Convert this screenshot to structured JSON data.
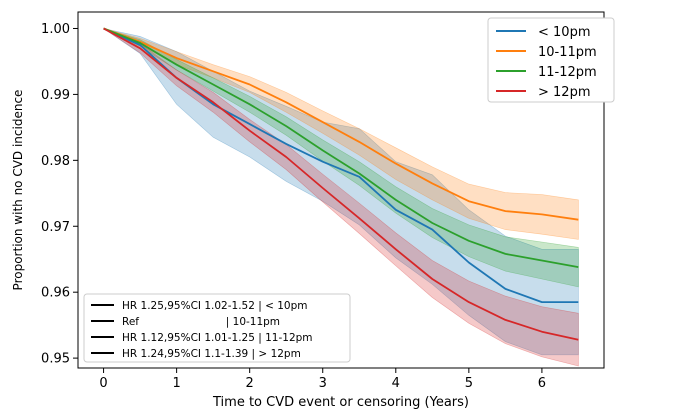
{
  "chart_data": {
    "type": "line",
    "title": "",
    "xlabel": "Time to CVD event or censoring (Years)",
    "ylabel": "Proportion with no CVD incidence",
    "xlim": [
      -0.35,
      6.85
    ],
    "ylim": [
      0.9485,
      1.0025
    ],
    "xticks": [
      0,
      1,
      2,
      3,
      4,
      5,
      6
    ],
    "yticks": [
      0.95,
      0.96,
      0.97,
      0.98,
      0.99,
      1.0
    ],
    "ytick_labels": [
      "0.95",
      "0.96",
      "0.97",
      "0.98",
      "0.99",
      "1.00"
    ],
    "grid": false,
    "legend_position": "top-right",
    "series": [
      {
        "name": "< 10pm",
        "color": "#1f77b4",
        "x": [
          0,
          0.5,
          1.0,
          1.5,
          2.0,
          2.5,
          3.0,
          3.5,
          4.0,
          4.5,
          5.0,
          5.5,
          6.0,
          6.5
        ],
        "y": [
          1.0,
          0.9975,
          0.9925,
          0.9885,
          0.9855,
          0.9825,
          0.9798,
          0.9775,
          0.9725,
          0.9695,
          0.9645,
          0.9605,
          0.9585,
          0.9585
        ],
        "lower": [
          1.0,
          0.9962,
          0.9885,
          0.9835,
          0.9805,
          0.9768,
          0.9738,
          0.9702,
          0.9652,
          0.9612,
          0.9565,
          0.9525,
          0.9505,
          0.9505
        ],
        "upper": [
          1.0,
          0.9988,
          0.9965,
          0.9935,
          0.9905,
          0.9882,
          0.9858,
          0.9848,
          0.9798,
          0.9778,
          0.9725,
          0.9685,
          0.9665,
          0.9665
        ]
      },
      {
        "name": "10-11pm",
        "color": "#ff7f0e",
        "x": [
          0,
          0.5,
          1.0,
          1.5,
          2.0,
          2.5,
          3.0,
          3.5,
          4.0,
          4.5,
          5.0,
          5.5,
          6.0,
          6.5
        ],
        "y": [
          1.0,
          0.998,
          0.9955,
          0.9935,
          0.9915,
          0.9888,
          0.9858,
          0.9828,
          0.9795,
          0.9765,
          0.9738,
          0.9723,
          0.9718,
          0.971
        ],
        "lower": [
          1.0,
          0.9975,
          0.9945,
          0.9925,
          0.9903,
          0.9873,
          0.9841,
          0.9808,
          0.9771,
          0.974,
          0.9712,
          0.9695,
          0.9688,
          0.968
        ],
        "upper": [
          1.0,
          0.9985,
          0.9965,
          0.9945,
          0.9927,
          0.9903,
          0.9875,
          0.9848,
          0.9819,
          0.979,
          0.9764,
          0.9751,
          0.9748,
          0.974
        ]
      },
      {
        "name": "11-12pm",
        "color": "#2ca02c",
        "x": [
          0,
          0.5,
          1.0,
          1.5,
          2.0,
          2.5,
          3.0,
          3.5,
          4.0,
          4.5,
          5.0,
          5.5,
          6.0,
          6.5
        ],
        "y": [
          1.0,
          0.9978,
          0.9945,
          0.9915,
          0.9885,
          0.9852,
          0.9815,
          0.978,
          0.974,
          0.9705,
          0.9678,
          0.9658,
          0.9648,
          0.9638
        ],
        "lower": [
          1.0,
          0.9973,
          0.9937,
          0.9905,
          0.9873,
          0.9838,
          0.9799,
          0.9762,
          0.972,
          0.9683,
          0.9654,
          0.9632,
          0.962,
          0.9608
        ],
        "upper": [
          1.0,
          0.9983,
          0.9953,
          0.9925,
          0.9897,
          0.9866,
          0.9831,
          0.9798,
          0.976,
          0.9727,
          0.9702,
          0.9684,
          0.9676,
          0.9668
        ]
      },
      {
        "name": "> 12pm",
        "color": "#d62728",
        "x": [
          0,
          0.5,
          1.0,
          1.5,
          2.0,
          2.5,
          3.0,
          3.5,
          4.0,
          4.5,
          5.0,
          5.5,
          6.0,
          6.5
        ],
        "y": [
          1.0,
          0.997,
          0.9925,
          0.9888,
          0.9845,
          0.9805,
          0.9758,
          0.9712,
          0.9665,
          0.962,
          0.9585,
          0.9558,
          0.954,
          0.9528
        ],
        "lower": [
          1.0,
          0.9963,
          0.9913,
          0.9873,
          0.9828,
          0.9786,
          0.9737,
          0.9689,
          0.964,
          0.9592,
          0.9553,
          0.9522,
          0.9502,
          0.9488
        ],
        "upper": [
          1.0,
          0.9977,
          0.9937,
          0.9903,
          0.9862,
          0.9824,
          0.9779,
          0.9735,
          0.969,
          0.9648,
          0.9617,
          0.9594,
          0.9578,
          0.9568
        ]
      }
    ],
    "annotations": [
      "HR 1.25,95%CI 1.02-1.52 | < 10pm",
      "Ref                          | 10-11pm",
      "HR 1.12,95%CI 1.01-1.25 | 11-12pm",
      "HR 1.24,95%CI 1.1-1.39 | > 12pm"
    ]
  }
}
